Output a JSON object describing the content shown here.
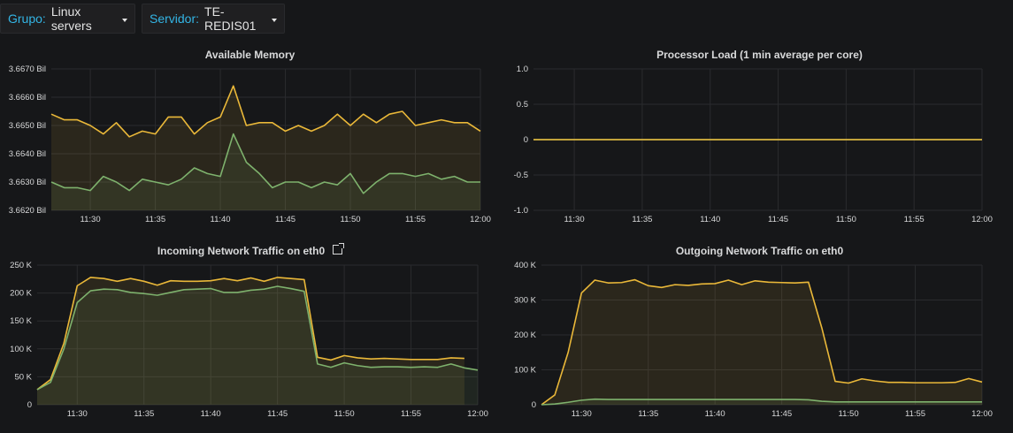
{
  "variables": [
    {
      "label": "Grupo:",
      "value": "Linux servers"
    },
    {
      "label": "Servidor:",
      "value": "TE-REDIS01"
    }
  ],
  "colors": {
    "yellow": "#eab839",
    "green": "#7eb26d",
    "grid": "#2a2b2e",
    "background": "#161719"
  },
  "chart_data": [
    {
      "type": "area",
      "title": "Available Memory",
      "xlim": [
        "11:27",
        "12:00"
      ],
      "x_ticks": [
        "11:30",
        "11:35",
        "11:40",
        "11:45",
        "11:50",
        "11:55",
        "12:00"
      ],
      "ylim": [
        3.662,
        3.667
      ],
      "y_ticks": [
        {
          "v": 3.667,
          "label": "3.6670 Bil"
        },
        {
          "v": 3.666,
          "label": "3.6660 Bil"
        },
        {
          "v": 3.665,
          "label": "3.6650 Bil"
        },
        {
          "v": 3.664,
          "label": "3.6640 Bil"
        },
        {
          "v": 3.663,
          "label": "3.6630 Bil"
        },
        {
          "v": 3.662,
          "label": "3.6620 Bil"
        }
      ],
      "series": [
        {
          "color": "#eab839",
          "x": [
            "11:27",
            "11:28",
            "11:29",
            "11:30",
            "11:31",
            "11:32",
            "11:33",
            "11:34",
            "11:35",
            "11:36",
            "11:37",
            "11:38",
            "11:39",
            "11:40",
            "11:41",
            "11:42",
            "11:43",
            "11:44",
            "11:45",
            "11:46",
            "11:47",
            "11:48",
            "11:49",
            "11:50",
            "11:51",
            "11:52",
            "11:53",
            "11:54",
            "11:55",
            "11:56",
            "11:57",
            "11:58",
            "11:59",
            "12:00"
          ],
          "y": [
            3.6654,
            3.6652,
            3.6652,
            3.665,
            3.6647,
            3.6651,
            3.6646,
            3.6648,
            3.6647,
            3.6653,
            3.6653,
            3.6647,
            3.6651,
            3.6653,
            3.6664,
            3.665,
            3.6651,
            3.6651,
            3.6648,
            3.665,
            3.6648,
            3.665,
            3.6654,
            3.665,
            3.6654,
            3.6651,
            3.6654,
            3.6655,
            3.665,
            3.6651,
            3.6652,
            3.6651,
            3.6651,
            3.6648
          ]
        },
        {
          "color": "#7eb26d",
          "x": [
            "11:27",
            "11:28",
            "11:29",
            "11:30",
            "11:31",
            "11:32",
            "11:33",
            "11:34",
            "11:35",
            "11:36",
            "11:37",
            "11:38",
            "11:39",
            "11:40",
            "11:41",
            "11:42",
            "11:43",
            "11:44",
            "11:45",
            "11:46",
            "11:47",
            "11:48",
            "11:49",
            "11:50",
            "11:51",
            "11:52",
            "11:53",
            "11:54",
            "11:55",
            "11:56",
            "11:57",
            "11:58",
            "11:59",
            "12:00"
          ],
          "y": [
            3.663,
            3.6628,
            3.6628,
            3.6627,
            3.6632,
            3.663,
            3.6627,
            3.6631,
            3.663,
            3.6629,
            3.6631,
            3.6635,
            3.6633,
            3.6632,
            3.6647,
            3.6637,
            3.6633,
            3.6628,
            3.663,
            3.663,
            3.6628,
            3.663,
            3.6629,
            3.6633,
            3.6626,
            3.663,
            3.6633,
            3.6633,
            3.6632,
            3.6633,
            3.6631,
            3.6632,
            3.663,
            3.663
          ]
        }
      ]
    },
    {
      "type": "line",
      "title": "Processor Load (1 min average per core)",
      "xlim": [
        "11:27",
        "12:00"
      ],
      "x_ticks": [
        "11:30",
        "11:35",
        "11:40",
        "11:45",
        "11:50",
        "11:55",
        "12:00"
      ],
      "ylim": [
        -1.0,
        1.0
      ],
      "y_ticks": [
        {
          "v": 1.0,
          "label": "1.0"
        },
        {
          "v": 0.5,
          "label": "0.5"
        },
        {
          "v": 0,
          "label": "0"
        },
        {
          "v": -0.5,
          "label": "-0.5"
        },
        {
          "v": -1.0,
          "label": "-1.0"
        }
      ],
      "series": [
        {
          "color": "#7eb26d",
          "x": [
            "11:27",
            "12:00"
          ],
          "y": [
            0,
            0
          ]
        },
        {
          "color": "#eab839",
          "x": [
            "11:27",
            "12:00"
          ],
          "y": [
            0,
            0
          ]
        }
      ]
    },
    {
      "type": "area",
      "title": "Incoming Network Traffic on eth0",
      "xlim": [
        "11:27",
        "12:00"
      ],
      "x_ticks": [
        "11:30",
        "11:35",
        "11:40",
        "11:45",
        "11:50",
        "11:55",
        "12:00"
      ],
      "ylim": [
        0,
        250000
      ],
      "y_ticks": [
        {
          "v": 250000,
          "label": "250 K"
        },
        {
          "v": 200000,
          "label": "200 K"
        },
        {
          "v": 150000,
          "label": "150 K"
        },
        {
          "v": 100000,
          "label": "100 K"
        },
        {
          "v": 50000,
          "label": "50 K"
        },
        {
          "v": 0,
          "label": "0"
        }
      ],
      "series": [
        {
          "color": "#eab839",
          "x": [
            "11:27",
            "11:28",
            "11:29",
            "11:30",
            "11:31",
            "11:32",
            "11:33",
            "11:34",
            "11:35",
            "11:36",
            "11:37",
            "11:38",
            "11:39",
            "11:40",
            "11:41",
            "11:42",
            "11:43",
            "11:44",
            "11:45",
            "11:46",
            "11:47",
            "11:48",
            "11:49",
            "11:50",
            "11:51",
            "11:52",
            "11:53",
            "11:54",
            "11:55",
            "11:56",
            "11:57",
            "11:58",
            "11:59",
            "12:00"
          ],
          "y": [
            27000,
            45000,
            110000,
            213000,
            228000,
            226000,
            221000,
            226000,
            221000,
            214000,
            222000,
            221000,
            221000,
            222000,
            226000,
            222000,
            227000,
            221000,
            228000,
            226000,
            224000,
            85000,
            80000,
            88000,
            84000,
            82000,
            83000,
            82000,
            81000,
            81000,
            81000,
            84000,
            83000,
            null
          ]
        },
        {
          "color": "#7eb26d",
          "x": [
            "11:27",
            "11:28",
            "11:29",
            "11:30",
            "11:31",
            "11:32",
            "11:33",
            "11:34",
            "11:35",
            "11:36",
            "11:37",
            "11:38",
            "11:39",
            "11:40",
            "11:41",
            "11:42",
            "11:43",
            "11:44",
            "11:45",
            "11:46",
            "11:47",
            "11:48",
            "11:49",
            "11:50",
            "11:51",
            "11:52",
            "11:53",
            "11:54",
            "11:55",
            "11:56",
            "11:57",
            "11:58",
            "11:59",
            "12:00"
          ],
          "y": [
            27000,
            40000,
            100000,
            183000,
            204000,
            207000,
            206000,
            201000,
            199000,
            196000,
            201000,
            206000,
            207000,
            208000,
            201000,
            201000,
            205000,
            207000,
            212000,
            208000,
            203000,
            73000,
            67000,
            75000,
            70000,
            67000,
            68000,
            68000,
            67000,
            68000,
            67000,
            73000,
            66000,
            62000
          ]
        }
      ]
    },
    {
      "type": "area",
      "title": "Outgoing Network Traffic on eth0",
      "xlim": [
        "11:27",
        "12:00"
      ],
      "x_ticks": [
        "11:30",
        "11:35",
        "11:40",
        "11:45",
        "11:50",
        "11:55",
        "12:00"
      ],
      "ylim": [
        0,
        400000
      ],
      "y_ticks": [
        {
          "v": 400000,
          "label": "400 K"
        },
        {
          "v": 300000,
          "label": "300 K"
        },
        {
          "v": 200000,
          "label": "200 K"
        },
        {
          "v": 100000,
          "label": "100 K"
        },
        {
          "v": 0,
          "label": "0"
        }
      ],
      "series": [
        {
          "color": "#eab839",
          "x": [
            "11:27",
            "11:28",
            "11:29",
            "11:30",
            "11:31",
            "11:32",
            "11:33",
            "11:34",
            "11:35",
            "11:36",
            "11:37",
            "11:38",
            "11:39",
            "11:40",
            "11:41",
            "11:42",
            "11:43",
            "11:44",
            "11:45",
            "11:46",
            "11:47",
            "11:48",
            "11:49",
            "11:50",
            "11:51",
            "11:52",
            "11:53",
            "11:54",
            "11:55",
            "11:56",
            "11:57",
            "11:58",
            "11:59",
            "12:00"
          ],
          "y": [
            0,
            28000,
            150000,
            320000,
            357000,
            349000,
            350000,
            358000,
            341000,
            336000,
            344000,
            342000,
            346000,
            347000,
            357000,
            344000,
            355000,
            351000,
            350000,
            349000,
            351000,
            220000,
            67000,
            62000,
            74000,
            68000,
            64000,
            64000,
            63000,
            63000,
            63000,
            64000,
            75000,
            65000
          ]
        },
        {
          "color": "#7eb26d",
          "x": [
            "11:27",
            "11:28",
            "11:29",
            "11:30",
            "11:31",
            "11:32",
            "11:33",
            "11:34",
            "11:35",
            "11:36",
            "11:37",
            "11:38",
            "11:39",
            "11:40",
            "11:41",
            "11:42",
            "11:43",
            "11:44",
            "11:45",
            "11:46",
            "11:47",
            "11:48",
            "11:49",
            "11:50",
            "11:51",
            "11:52",
            "11:53",
            "11:54",
            "11:55",
            "11:56",
            "11:57",
            "11:58",
            "11:59",
            "12:00"
          ],
          "y": [
            0,
            2000,
            7000,
            13000,
            16000,
            15000,
            15000,
            15000,
            15000,
            15000,
            15000,
            15000,
            15000,
            15000,
            15000,
            15000,
            15000,
            15000,
            15000,
            15000,
            14000,
            10000,
            8000,
            8000,
            8000,
            8000,
            8000,
            8000,
            8000,
            8000,
            8000,
            8000,
            8000,
            8000
          ]
        }
      ]
    }
  ]
}
